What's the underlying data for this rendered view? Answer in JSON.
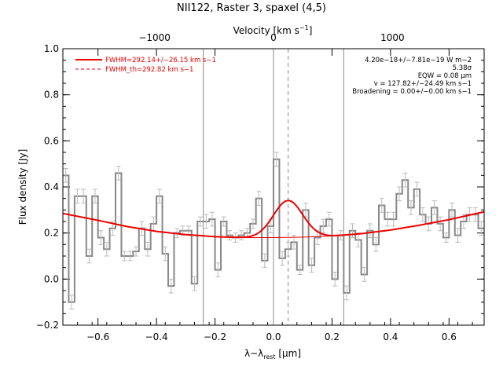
{
  "chart_data": {
    "type": "line",
    "title": "NII122, Raster 3, spaxel (4,5)",
    "xlabel": "λ−λrest [μm]",
    "ylabel": "Flux density [Jy]",
    "top_axis_label": "Velocity [km s−1]",
    "xlim": [
      -0.72,
      0.72
    ],
    "ylim": [
      -0.2,
      1.0
    ],
    "x_ticks": [
      -0.6,
      -0.4,
      -0.2,
      0.0,
      0.2,
      0.4,
      0.6
    ],
    "x_tick_labels": [
      "−0.6",
      "−0.4",
      "−0.2",
      "0.0",
      "0.2",
      "0.4",
      "0.6"
    ],
    "y_ticks": [
      -0.2,
      0.0,
      0.2,
      0.4,
      0.6,
      0.8,
      1.0
    ],
    "y_tick_labels": [
      "−0.2",
      "0.0",
      "0.2",
      "0.4",
      "0.6",
      "0.8",
      "1.0"
    ],
    "top_ticks_kms": [
      -1000,
      0,
      1000
    ],
    "top_tick_labels": [
      "−1000",
      "0",
      "1000"
    ],
    "legend": {
      "placement": "top-left",
      "entries": [
        {
          "label": "FWHM=292.14+/−26.15 km s−1",
          "style": "solid",
          "color": "#ee0000"
        },
        {
          "label": "FWHM_th=292.82 km s−1",
          "style": "dashed",
          "color": "#ee0000"
        }
      ]
    },
    "annotations": [
      "4.20e−18+/−7.81e−19 W m−2",
      "5.38σ",
      "EQW = 0.08 μm",
      "v = 127.82+/−24.49 km s−1",
      "Broadening = 0.00+/−0.00 km s−1"
    ],
    "vertical_lines": {
      "solid_gray": [
        -0.24,
        0.0,
        0.24
      ],
      "dashed_gray": [
        0.05
      ]
    },
    "series": [
      {
        "kind": "steps-with-errors",
        "color": "#888888",
        "x": [
          -0.71,
          -0.69,
          -0.67,
          -0.65,
          -0.63,
          -0.61,
          -0.59,
          -0.57,
          -0.55,
          -0.53,
          -0.51,
          -0.49,
          -0.47,
          -0.45,
          -0.43,
          -0.41,
          -0.39,
          -0.37,
          -0.35,
          -0.33,
          -0.31,
          -0.29,
          -0.27,
          -0.25,
          -0.23,
          -0.21,
          -0.19,
          -0.17,
          -0.15,
          -0.13,
          -0.11,
          -0.09,
          -0.07,
          -0.05,
          -0.03,
          -0.01,
          0.01,
          0.03,
          0.05,
          0.07,
          0.09,
          0.11,
          0.13,
          0.15,
          0.17,
          0.19,
          0.21,
          0.23,
          0.25,
          0.27,
          0.29,
          0.31,
          0.33,
          0.35,
          0.37,
          0.39,
          0.41,
          0.43,
          0.45,
          0.47,
          0.49,
          0.51,
          0.53,
          0.55,
          0.57,
          0.59,
          0.61,
          0.63,
          0.65,
          0.67,
          0.69,
          0.71
        ],
        "values": [
          0.45,
          -0.1,
          0.36,
          0.36,
          0.1,
          0.36,
          0.18,
          0.13,
          0.22,
          0.46,
          0.1,
          0.1,
          0.12,
          0.22,
          0.13,
          0.24,
          0.36,
          0.11,
          -0.03,
          0.2,
          0.21,
          0.21,
          -0.02,
          0.25,
          0.25,
          0.26,
          0.04,
          0.25,
          0.19,
          0.18,
          0.19,
          0.2,
          0.24,
          0.35,
          0.08,
          0.23,
          0.52,
          0.09,
          0.13,
          0.16,
          0.04,
          0.3,
          0.06,
          0.18,
          0.23,
          0.26,
          0.0,
          0.19,
          -0.06,
          0.21,
          0.17,
          0.02,
          0.21,
          0.15,
          0.32,
          0.26,
          0.26,
          0.37,
          0.43,
          0.31,
          0.39,
          0.28,
          0.24,
          0.31,
          0.24,
          0.18,
          0.3,
          0.19,
          0.25,
          0.28,
          0.28,
          0.22
        ],
        "errors": [
          0.03,
          0.03,
          0.03,
          0.03,
          0.03,
          0.03,
          0.03,
          0.03,
          0.03,
          0.03,
          0.02,
          0.02,
          0.02,
          0.03,
          0.03,
          0.03,
          0.03,
          0.03,
          0.03,
          0.02,
          0.02,
          0.02,
          0.03,
          0.02,
          0.03,
          0.03,
          0.03,
          0.02,
          0.02,
          0.02,
          0.02,
          0.02,
          0.02,
          0.03,
          0.03,
          0.03,
          0.03,
          0.03,
          0.03,
          0.03,
          0.02,
          0.03,
          0.03,
          0.03,
          0.03,
          0.03,
          0.03,
          0.02,
          0.03,
          0.03,
          0.03,
          0.03,
          0.03,
          0.03,
          0.03,
          0.03,
          0.03,
          0.03,
          0.03,
          0.03,
          0.03,
          0.03,
          0.03,
          0.03,
          0.03,
          0.02,
          0.03,
          0.03,
          0.03,
          0.03,
          0.03,
          0.03
        ]
      },
      {
        "kind": "baseline-polynomial",
        "color": "#ee0000",
        "x": [
          -0.72,
          -0.6,
          -0.5,
          -0.4,
          -0.3,
          -0.2,
          -0.1,
          0.0,
          0.1,
          0.2,
          0.3,
          0.4,
          0.5,
          0.6,
          0.72
        ],
        "values": [
          0.285,
          0.255,
          0.228,
          0.207,
          0.193,
          0.184,
          0.18,
          0.18,
          0.182,
          0.187,
          0.197,
          0.213,
          0.234,
          0.258,
          0.292
        ]
      },
      {
        "kind": "gaussian-plus-baseline",
        "color": "#ee0000",
        "center": 0.05,
        "fwhm_um": 0.118,
        "peak": 0.16
      }
    ]
  }
}
